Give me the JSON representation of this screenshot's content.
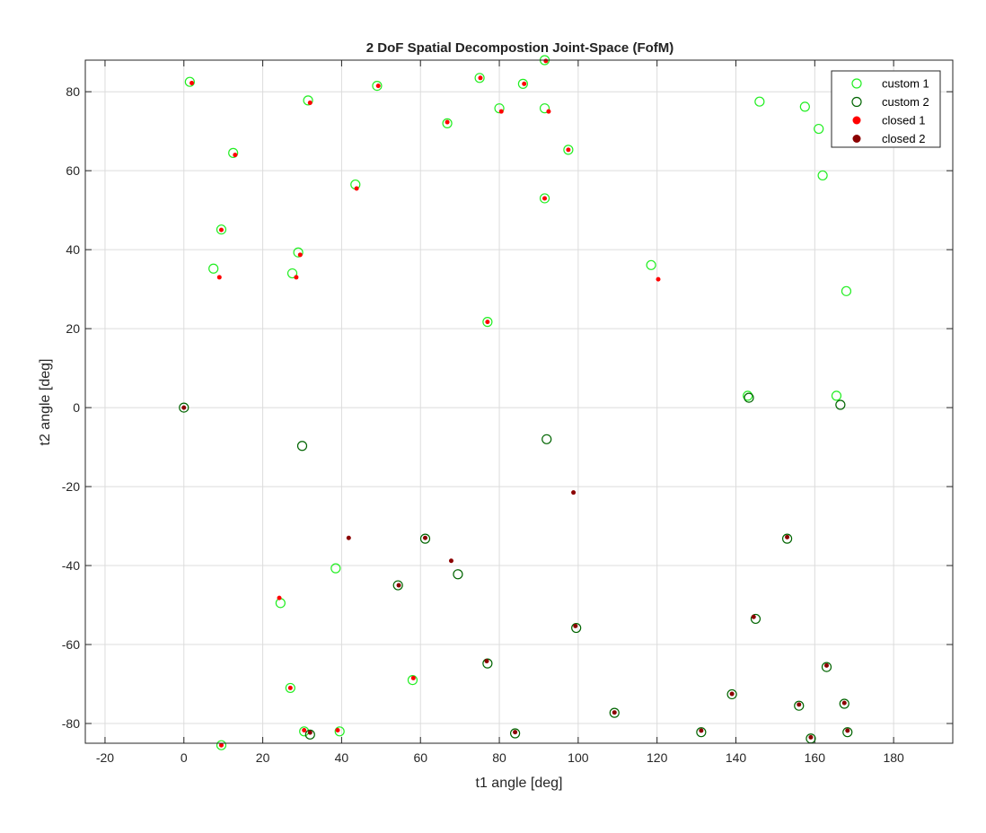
{
  "chart_data": {
    "type": "scatter",
    "title": "2 DoF Spatial Decompostion Joint-Space (FofM)",
    "xlabel": "t1 angle [deg]",
    "ylabel": "t2 angle [deg]",
    "xlim": [
      -25,
      195
    ],
    "ylim": [
      -85,
      88
    ],
    "xticks": [
      -20,
      0,
      20,
      40,
      60,
      80,
      100,
      120,
      140,
      160,
      180
    ],
    "yticks": [
      -80,
      -60,
      -40,
      -20,
      0,
      20,
      40,
      60,
      80
    ],
    "grid": true,
    "legend_position": "top-right",
    "series": [
      {
        "name": "custom 1",
        "marker": "open-circle",
        "color": "#22ee22",
        "points": [
          [
            1.5,
            82.5
          ],
          [
            31.5,
            77.8
          ],
          [
            49,
            81.5
          ],
          [
            75,
            83.5
          ],
          [
            86,
            82
          ],
          [
            91.5,
            88
          ],
          [
            80,
            75.8
          ],
          [
            91.5,
            75.8
          ],
          [
            66.8,
            72
          ],
          [
            146,
            77.5
          ],
          [
            157.5,
            76.2
          ],
          [
            161,
            70.6
          ],
          [
            12.5,
            64.5
          ],
          [
            97.5,
            65.3
          ],
          [
            162,
            58.8
          ],
          [
            43.5,
            56.5
          ],
          [
            91.5,
            53
          ],
          [
            9.5,
            45.1
          ],
          [
            29,
            39.3
          ],
          [
            7.5,
            35.2
          ],
          [
            27.5,
            34
          ],
          [
            118.5,
            36.1
          ],
          [
            168,
            29.5
          ],
          [
            77,
            21.7
          ],
          [
            143,
            3
          ],
          [
            165.5,
            3
          ],
          [
            38.5,
            -40.7
          ],
          [
            24.5,
            -49.5
          ],
          [
            58,
            -69
          ],
          [
            27,
            -71
          ],
          [
            30.5,
            -82
          ],
          [
            39.5,
            -82
          ],
          [
            9.5,
            -85.5
          ]
        ]
      },
      {
        "name": "custom 2",
        "marker": "open-circle",
        "color": "#006400",
        "points": [
          [
            0,
            0
          ],
          [
            143.3,
            2.5
          ],
          [
            166.5,
            0.7
          ],
          [
            30,
            -9.7
          ],
          [
            92,
            -8
          ],
          [
            61.2,
            -33.2
          ],
          [
            153,
            -33.2
          ],
          [
            69.5,
            -42.2
          ],
          [
            54.3,
            -45
          ],
          [
            99.5,
            -55.8
          ],
          [
            145,
            -53.5
          ],
          [
            77,
            -64.8
          ],
          [
            163,
            -65.7
          ],
          [
            139,
            -72.6
          ],
          [
            167.5,
            -75
          ],
          [
            156,
            -75.5
          ],
          [
            109.2,
            -77.3
          ],
          [
            32,
            -82.8
          ],
          [
            84,
            -82.5
          ],
          [
            131.2,
            -82.2
          ],
          [
            168.3,
            -82.2
          ],
          [
            159,
            -83.8
          ]
        ]
      },
      {
        "name": "closed 1",
        "marker": "filled-dot",
        "color": "#ff0000",
        "points": [
          [
            2,
            82.2
          ],
          [
            32,
            77.2
          ],
          [
            49.3,
            81.5
          ],
          [
            75.2,
            83.5
          ],
          [
            86.3,
            82
          ],
          [
            91.8,
            87.8
          ],
          [
            80.5,
            75
          ],
          [
            92.5,
            75
          ],
          [
            66.8,
            72.3
          ],
          [
            13,
            64
          ],
          [
            97.5,
            65.3
          ],
          [
            43.8,
            55.5
          ],
          [
            91.5,
            53
          ],
          [
            9.5,
            45
          ],
          [
            29.5,
            38.7
          ],
          [
            9,
            33
          ],
          [
            28.5,
            33
          ],
          [
            120.3,
            32.5
          ],
          [
            77,
            21.7
          ],
          [
            24.2,
            -48.2
          ],
          [
            58.2,
            -68.5
          ],
          [
            27,
            -71
          ],
          [
            30.5,
            -81.7
          ],
          [
            39,
            -81.7
          ],
          [
            9.5,
            -85.5
          ]
        ]
      },
      {
        "name": "closed 2",
        "marker": "filled-dot",
        "color": "#8b0000",
        "points": [
          [
            0,
            0
          ],
          [
            98.8,
            -21.5
          ],
          [
            41.8,
            -33
          ],
          [
            61.2,
            -33
          ],
          [
            153,
            -32.8
          ],
          [
            67.8,
            -38.8
          ],
          [
            54.5,
            -45
          ],
          [
            99.3,
            -55.3
          ],
          [
            144.5,
            -53
          ],
          [
            76.8,
            -64.2
          ],
          [
            163,
            -65.3
          ],
          [
            139,
            -72.5
          ],
          [
            167.5,
            -74.8
          ],
          [
            156,
            -75.2
          ],
          [
            109.2,
            -77.2
          ],
          [
            32,
            -82.3
          ],
          [
            84,
            -82.2
          ],
          [
            131.2,
            -81.8
          ],
          [
            168.3,
            -81.8
          ],
          [
            159,
            -83.5
          ]
        ]
      }
    ]
  }
}
